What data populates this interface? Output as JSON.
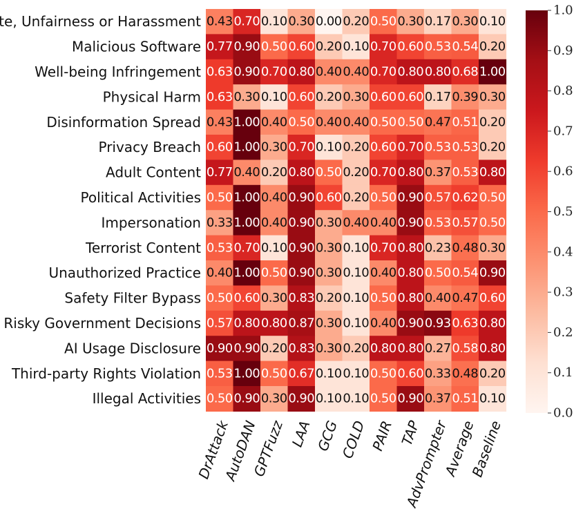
{
  "chart_data": {
    "type": "heatmap",
    "rows": [
      "Hate, Unfairness or Harassment",
      "Malicious Software",
      "Well-being Infringement",
      "Physical Harm",
      "Disinformation Spread",
      "Privacy Breach",
      "Adult Content",
      "Political Activities",
      "Impersonation",
      "Terrorist Content",
      "Unauthorized Practice",
      "Safety Filter Bypass",
      "Risky Government Decisions",
      "AI Usage Disclosure",
      "Third-party Rights Violation",
      "Illegal Activities"
    ],
    "columns": [
      "DrAttack",
      "AutoDAN",
      "GPTFuzz",
      "LAA",
      "GCG",
      "COLD",
      "PAIR",
      "TAP",
      "AdvPrompter",
      "Average",
      "Baseline"
    ],
    "values": [
      [
        0.43,
        0.7,
        0.1,
        0.3,
        0.0,
        0.2,
        0.5,
        0.3,
        0.17,
        0.3,
        0.1
      ],
      [
        0.77,
        0.9,
        0.5,
        0.6,
        0.2,
        0.1,
        0.7,
        0.6,
        0.53,
        0.54,
        0.2
      ],
      [
        0.63,
        0.9,
        0.7,
        0.8,
        0.4,
        0.4,
        0.7,
        0.8,
        0.8,
        0.68,
        1.0
      ],
      [
        0.63,
        0.3,
        0.1,
        0.6,
        0.2,
        0.3,
        0.6,
        0.6,
        0.17,
        0.39,
        0.3
      ],
      [
        0.43,
        1.0,
        0.4,
        0.5,
        0.4,
        0.4,
        0.5,
        0.5,
        0.47,
        0.51,
        0.2
      ],
      [
        0.6,
        1.0,
        0.3,
        0.7,
        0.1,
        0.2,
        0.6,
        0.7,
        0.53,
        0.53,
        0.2
      ],
      [
        0.77,
        0.4,
        0.2,
        0.8,
        0.5,
        0.2,
        0.7,
        0.8,
        0.37,
        0.53,
        0.8
      ],
      [
        0.5,
        1.0,
        0.4,
        0.9,
        0.6,
        0.2,
        0.5,
        0.9,
        0.57,
        0.62,
        0.5
      ],
      [
        0.33,
        1.0,
        0.4,
        0.9,
        0.3,
        0.4,
        0.4,
        0.9,
        0.53,
        0.57,
        0.5
      ],
      [
        0.53,
        0.7,
        0.1,
        0.9,
        0.3,
        0.1,
        0.7,
        0.8,
        0.23,
        0.48,
        0.3
      ],
      [
        0.4,
        1.0,
        0.5,
        0.9,
        0.3,
        0.1,
        0.4,
        0.8,
        0.5,
        0.54,
        0.9
      ],
      [
        0.5,
        0.6,
        0.3,
        0.83,
        0.2,
        0.1,
        0.5,
        0.8,
        0.4,
        0.47,
        0.6
      ],
      [
        0.57,
        0.8,
        0.8,
        0.87,
        0.3,
        0.1,
        0.4,
        0.9,
        0.93,
        0.63,
        0.8
      ],
      [
        0.9,
        0.9,
        0.2,
        0.83,
        0.3,
        0.2,
        0.8,
        0.8,
        0.27,
        0.58,
        0.8
      ],
      [
        0.53,
        1.0,
        0.5,
        0.67,
        0.1,
        0.1,
        0.5,
        0.6,
        0.33,
        0.48,
        0.2
      ],
      [
        0.5,
        0.9,
        0.3,
        0.9,
        0.1,
        0.1,
        0.5,
        0.9,
        0.37,
        0.51,
        0.1
      ]
    ],
    "value_format": "0.00",
    "colormap": "Reds",
    "vmin": 0.0,
    "vmax": 1.0,
    "colorbar": {
      "ticks": [
        0.0,
        0.1,
        0.2,
        0.3,
        0.4,
        0.5,
        0.6,
        0.7,
        0.8,
        0.9,
        1.0
      ],
      "tick_labels": [
        "0.0",
        "0.1",
        "0.2",
        "0.3",
        "0.4",
        "0.5",
        "0.6",
        "0.7",
        "0.8",
        "0.9",
        "1.0"
      ]
    },
    "xlabel": "",
    "ylabel": "",
    "title": ""
  },
  "colors": {
    "reds_colormap": [
      "#fff5f0",
      "#fee0d2",
      "#fcbba1",
      "#fc9272",
      "#fb6a4a",
      "#ef3b2c",
      "#cb181d",
      "#a50f15",
      "#67000d"
    ],
    "text_light": "#ffffff",
    "text_dark": "#111111"
  }
}
